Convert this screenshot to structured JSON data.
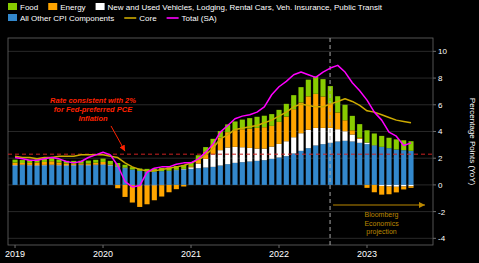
{
  "chart_data": {
    "type": "bar",
    "stacked": true,
    "ylabel": "Percentage Points (YoY)",
    "grid": true,
    "legend": "upper left",
    "xlim": [
      2018.92,
      2023.75
    ],
    "xticks": [
      2019,
      2020,
      2021,
      2022,
      2023
    ],
    "ylim": [
      -4.5,
      11.0
    ],
    "yticks": [
      -4,
      -2,
      0,
      2,
      4,
      6,
      8,
      10
    ],
    "x": [
      2019.0,
      2019.083,
      2019.167,
      2019.25,
      2019.333,
      2019.417,
      2019.5,
      2019.583,
      2019.667,
      2019.75,
      2019.833,
      2019.917,
      2020.0,
      2020.083,
      2020.167,
      2020.25,
      2020.333,
      2020.417,
      2020.5,
      2020.583,
      2020.667,
      2020.75,
      2020.833,
      2020.917,
      2021.0,
      2021.083,
      2021.167,
      2021.25,
      2021.333,
      2021.417,
      2021.5,
      2021.583,
      2021.667,
      2021.75,
      2021.833,
      2021.917,
      2022.0,
      2022.083,
      2022.167,
      2022.25,
      2022.333,
      2022.417,
      2022.5,
      2022.583,
      2022.667,
      2022.75,
      2022.833,
      2022.917,
      2023.0,
      2023.083,
      2023.167,
      2023.25,
      2023.333,
      2023.417,
      2023.5
    ],
    "series": [
      {
        "name": "Food",
        "type": "bar",
        "color": "#88cc00",
        "values": [
          0.22,
          0.22,
          0.22,
          0.23,
          0.24,
          0.24,
          0.22,
          0.2,
          0.2,
          0.21,
          0.22,
          0.22,
          0.25,
          0.26,
          0.25,
          0.22,
          0.18,
          0.18,
          0.2,
          0.22,
          0.24,
          0.26,
          0.28,
          0.3,
          0.32,
          0.34,
          0.36,
          0.4,
          0.48,
          0.58,
          0.65,
          0.72,
          0.78,
          0.83,
          0.86,
          0.88,
          0.9,
          0.95,
          1.05,
          1.15,
          1.25,
          1.3,
          1.3,
          1.28,
          1.22,
          1.16,
          1.08,
          1.02,
          0.92,
          0.88,
          0.82,
          0.78,
          0.76,
          0.74,
          0.72
        ]
      },
      {
        "name": "Energy",
        "type": "bar",
        "color": "#ffa500",
        "values": [
          0.18,
          0.12,
          0.15,
          0.2,
          0.22,
          0.25,
          0.18,
          0.12,
          0.1,
          0.08,
          0.1,
          0.14,
          0.18,
          0.05,
          -0.25,
          -0.9,
          -1.3,
          -1.6,
          -1.4,
          -1.1,
          -0.85,
          -0.55,
          -0.32,
          -0.12,
          0.08,
          0.28,
          0.52,
          0.75,
          0.95,
          1.15,
          1.25,
          1.35,
          1.45,
          1.55,
          1.6,
          1.55,
          1.65,
          1.85,
          2.1,
          2.3,
          2.5,
          2.55,
          2.35,
          1.85,
          1.25,
          0.82,
          0.32,
          0.08,
          -0.22,
          -0.55,
          -0.65,
          -0.58,
          -0.42,
          -0.22,
          -0.12
        ]
      },
      {
        "name": "New and Used Vehicles, Lodging, Rental Cars, Veh. Insurance, Public Transit",
        "type": "bar",
        "color": "#ffffff",
        "values": [
          0.04,
          0.04,
          0.04,
          0.04,
          0.04,
          0.04,
          0.04,
          0.04,
          0.04,
          0.04,
          0.04,
          0.04,
          0.04,
          0.04,
          0.04,
          0.04,
          -0.02,
          -0.05,
          -0.05,
          -0.05,
          -0.02,
          0.01,
          0.03,
          0.05,
          0.12,
          0.35,
          0.65,
          0.95,
          1.15,
          1.25,
          1.2,
          1.12,
          1.02,
          0.92,
          0.87,
          0.92,
          1.02,
          1.12,
          1.22,
          1.32,
          1.38,
          1.32,
          1.22,
          1.12,
          0.92,
          0.72,
          0.52,
          0.3,
          0.12,
          0.02,
          -0.08,
          -0.12,
          -0.14,
          -0.12,
          -0.1
        ]
      },
      {
        "name": "All Other CPI Components",
        "type": "bar",
        "color": "#3388cc",
        "values": [
          1.45,
          1.48,
          1.46,
          1.44,
          1.46,
          1.48,
          1.46,
          1.44,
          1.46,
          1.48,
          1.46,
          1.48,
          1.5,
          1.45,
          1.35,
          1.25,
          1.15,
          1.05,
          1.0,
          1.0,
          1.03,
          1.05,
          1.1,
          1.15,
          1.2,
          1.25,
          1.3,
          1.35,
          1.45,
          1.55,
          1.65,
          1.7,
          1.75,
          1.8,
          1.85,
          1.95,
          2.05,
          2.15,
          2.35,
          2.55,
          2.75,
          2.95,
          3.05,
          3.15,
          3.25,
          3.3,
          3.25,
          3.15,
          3.05,
          2.95,
          2.85,
          2.75,
          2.65,
          2.6,
          2.55
        ]
      },
      {
        "name": "Core",
        "type": "line",
        "color": "#ccaa00",
        "values": [
          2.15,
          2.05,
          2.05,
          1.95,
          2.05,
          2.05,
          2.15,
          2.15,
          2.15,
          2.25,
          2.25,
          2.25,
          2.25,
          2.15,
          2.05,
          1.65,
          1.35,
          1.15,
          1.05,
          1.05,
          1.15,
          1.25,
          1.35,
          1.45,
          1.65,
          1.85,
          2.25,
          2.75,
          3.45,
          3.75,
          4.15,
          4.25,
          4.35,
          4.45,
          4.65,
          4.85,
          5.15,
          5.45,
          5.85,
          6.05,
          5.95,
          5.85,
          5.85,
          6.05,
          6.25,
          6.45,
          6.25,
          5.95,
          5.55,
          5.45,
          5.25,
          5.05,
          4.85,
          4.75,
          4.65
        ]
      },
      {
        "name": "Total (SA)",
        "type": "line",
        "color": "#ff00ff",
        "values": [
          2.05,
          1.95,
          1.85,
          1.85,
          1.95,
          2.05,
          1.95,
          1.75,
          1.65,
          1.75,
          2.05,
          2.25,
          2.45,
          2.25,
          1.45,
          0.25,
          -0.15,
          -0.05,
          0.95,
          1.25,
          1.35,
          1.35,
          1.55,
          1.65,
          1.65,
          1.95,
          2.45,
          3.05,
          3.95,
          4.45,
          4.95,
          5.15,
          5.25,
          5.45,
          5.85,
          6.75,
          7.35,
          7.75,
          8.25,
          8.45,
          8.25,
          8.05,
          8.45,
          8.75,
          8.95,
          8.45,
          7.65,
          7.05,
          6.35,
          5.45,
          4.85,
          3.95,
          3.65,
          2.95,
          3.15
        ]
      }
    ],
    "reference_line": {
      "value": 2.3,
      "color": "#cc2222"
    },
    "projection_line": {
      "value": 2022.58,
      "color": "#aaaaaa"
    },
    "annotations": [
      {
        "text": "Rate consistent with 2%\nfor Fed-preferred PCE\nInflation",
        "color": "#ff2200"
      },
      {
        "text": "Bloomberg\nEconomics\nprojection",
        "color": "#bb8800"
      }
    ]
  }
}
